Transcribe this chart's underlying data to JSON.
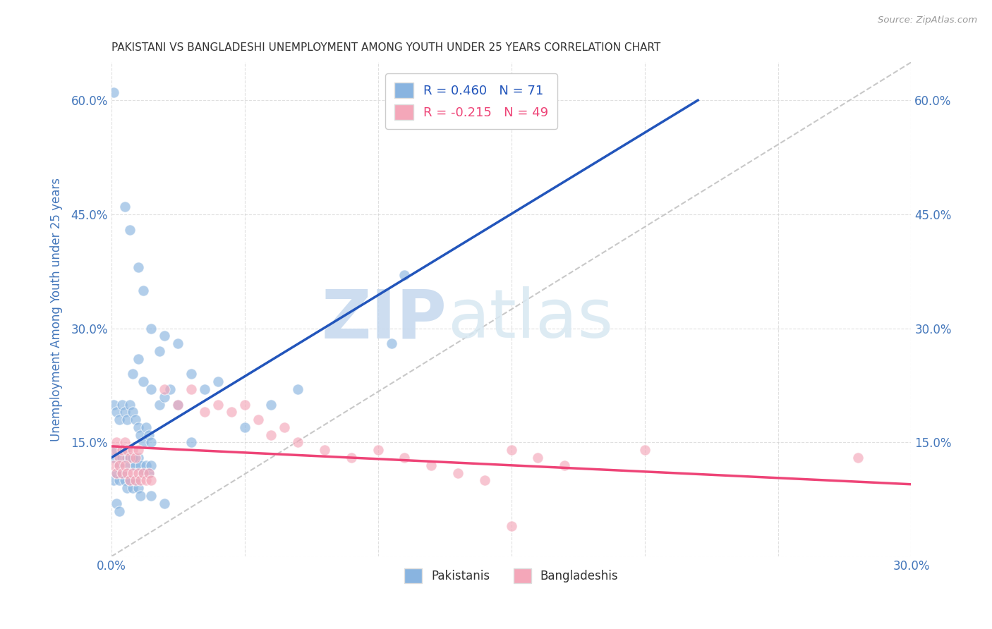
{
  "title": "PAKISTANI VS BANGLADESHI UNEMPLOYMENT AMONG YOUTH UNDER 25 YEARS CORRELATION CHART",
  "source": "Source: ZipAtlas.com",
  "ylabel": "Unemployment Among Youth under 25 years",
  "xlim": [
    0.0,
    0.3
  ],
  "ylim": [
    0.0,
    0.65
  ],
  "xtick_positions": [
    0.0,
    0.05,
    0.1,
    0.15,
    0.2,
    0.25,
    0.3
  ],
  "xtick_labels": [
    "0.0%",
    "",
    "",
    "",
    "",
    "",
    "30.0%"
  ],
  "ytick_left_positions": [
    0.0,
    0.15,
    0.3,
    0.45,
    0.6
  ],
  "ytick_left_labels": [
    "",
    "15.0%",
    "30.0%",
    "45.0%",
    "60.0%"
  ],
  "ytick_right_positions": [
    0.15,
    0.3,
    0.45,
    0.6
  ],
  "ytick_right_labels": [
    "15.0%",
    "30.0%",
    "45.0%",
    "60.0%"
  ],
  "blue_R": 0.46,
  "blue_N": 71,
  "pink_R": -0.215,
  "pink_N": 49,
  "blue_color": "#89B4E0",
  "pink_color": "#F4A7B9",
  "blue_line_color": "#2255BB",
  "pink_line_color": "#EE4477",
  "title_color": "#333333",
  "tick_color": "#4477BB",
  "grid_color": "#CCCCCC",
  "watermark_zip": "ZIP",
  "watermark_atlas": "atlas",
  "background_color": "#FFFFFF",
  "blue_line_x0": 0.0,
  "blue_line_y0": 0.13,
  "blue_line_x1": 0.22,
  "blue_line_y1": 0.6,
  "pink_line_x0": 0.0,
  "pink_line_y0": 0.145,
  "pink_line_x1": 0.3,
  "pink_line_y1": 0.095,
  "blue_scatter": [
    [
      0.001,
      0.61
    ],
    [
      0.005,
      0.46
    ],
    [
      0.007,
      0.43
    ],
    [
      0.01,
      0.38
    ],
    [
      0.012,
      0.35
    ],
    [
      0.015,
      0.3
    ],
    [
      0.01,
      0.26
    ],
    [
      0.018,
      0.27
    ],
    [
      0.02,
      0.29
    ],
    [
      0.025,
      0.28
    ],
    [
      0.008,
      0.24
    ],
    [
      0.012,
      0.23
    ],
    [
      0.015,
      0.22
    ],
    [
      0.018,
      0.2
    ],
    [
      0.02,
      0.21
    ],
    [
      0.022,
      0.22
    ],
    [
      0.025,
      0.2
    ],
    [
      0.03,
      0.24
    ],
    [
      0.035,
      0.22
    ],
    [
      0.04,
      0.23
    ],
    [
      0.001,
      0.2
    ],
    [
      0.002,
      0.19
    ],
    [
      0.003,
      0.18
    ],
    [
      0.004,
      0.2
    ],
    [
      0.005,
      0.19
    ],
    [
      0.006,
      0.18
    ],
    [
      0.007,
      0.2
    ],
    [
      0.008,
      0.19
    ],
    [
      0.009,
      0.18
    ],
    [
      0.01,
      0.17
    ],
    [
      0.011,
      0.16
    ],
    [
      0.012,
      0.15
    ],
    [
      0.013,
      0.17
    ],
    [
      0.014,
      0.16
    ],
    [
      0.015,
      0.15
    ],
    [
      0.001,
      0.13
    ],
    [
      0.002,
      0.14
    ],
    [
      0.003,
      0.12
    ],
    [
      0.004,
      0.13
    ],
    [
      0.005,
      0.14
    ],
    [
      0.006,
      0.13
    ],
    [
      0.007,
      0.12
    ],
    [
      0.008,
      0.13
    ],
    [
      0.009,
      0.12
    ],
    [
      0.01,
      0.13
    ],
    [
      0.011,
      0.12
    ],
    [
      0.012,
      0.11
    ],
    [
      0.013,
      0.12
    ],
    [
      0.014,
      0.11
    ],
    [
      0.015,
      0.12
    ],
    [
      0.001,
      0.1
    ],
    [
      0.002,
      0.11
    ],
    [
      0.003,
      0.1
    ],
    [
      0.004,
      0.11
    ],
    [
      0.005,
      0.1
    ],
    [
      0.006,
      0.09
    ],
    [
      0.007,
      0.1
    ],
    [
      0.008,
      0.09
    ],
    [
      0.009,
      0.1
    ],
    [
      0.01,
      0.09
    ],
    [
      0.011,
      0.08
    ],
    [
      0.002,
      0.07
    ],
    [
      0.003,
      0.06
    ],
    [
      0.015,
      0.08
    ],
    [
      0.02,
      0.07
    ],
    [
      0.11,
      0.37
    ],
    [
      0.105,
      0.28
    ],
    [
      0.03,
      0.15
    ],
    [
      0.05,
      0.17
    ],
    [
      0.06,
      0.2
    ],
    [
      0.07,
      0.22
    ]
  ],
  "pink_scatter": [
    [
      0.001,
      0.14
    ],
    [
      0.002,
      0.15
    ],
    [
      0.003,
      0.13
    ],
    [
      0.004,
      0.14
    ],
    [
      0.005,
      0.15
    ],
    [
      0.006,
      0.14
    ],
    [
      0.007,
      0.13
    ],
    [
      0.008,
      0.14
    ],
    [
      0.009,
      0.13
    ],
    [
      0.01,
      0.14
    ],
    [
      0.001,
      0.12
    ],
    [
      0.002,
      0.11
    ],
    [
      0.003,
      0.12
    ],
    [
      0.004,
      0.11
    ],
    [
      0.005,
      0.12
    ],
    [
      0.006,
      0.11
    ],
    [
      0.007,
      0.1
    ],
    [
      0.008,
      0.11
    ],
    [
      0.009,
      0.1
    ],
    [
      0.01,
      0.11
    ],
    [
      0.011,
      0.1
    ],
    [
      0.012,
      0.11
    ],
    [
      0.013,
      0.1
    ],
    [
      0.014,
      0.11
    ],
    [
      0.015,
      0.1
    ],
    [
      0.02,
      0.22
    ],
    [
      0.025,
      0.2
    ],
    [
      0.03,
      0.22
    ],
    [
      0.035,
      0.19
    ],
    [
      0.04,
      0.2
    ],
    [
      0.045,
      0.19
    ],
    [
      0.05,
      0.2
    ],
    [
      0.055,
      0.18
    ],
    [
      0.06,
      0.16
    ],
    [
      0.065,
      0.17
    ],
    [
      0.07,
      0.15
    ],
    [
      0.08,
      0.14
    ],
    [
      0.09,
      0.13
    ],
    [
      0.1,
      0.14
    ],
    [
      0.11,
      0.13
    ],
    [
      0.12,
      0.12
    ],
    [
      0.13,
      0.11
    ],
    [
      0.14,
      0.1
    ],
    [
      0.15,
      0.14
    ],
    [
      0.16,
      0.13
    ],
    [
      0.17,
      0.12
    ],
    [
      0.2,
      0.14
    ],
    [
      0.28,
      0.13
    ],
    [
      0.15,
      0.04
    ]
  ]
}
